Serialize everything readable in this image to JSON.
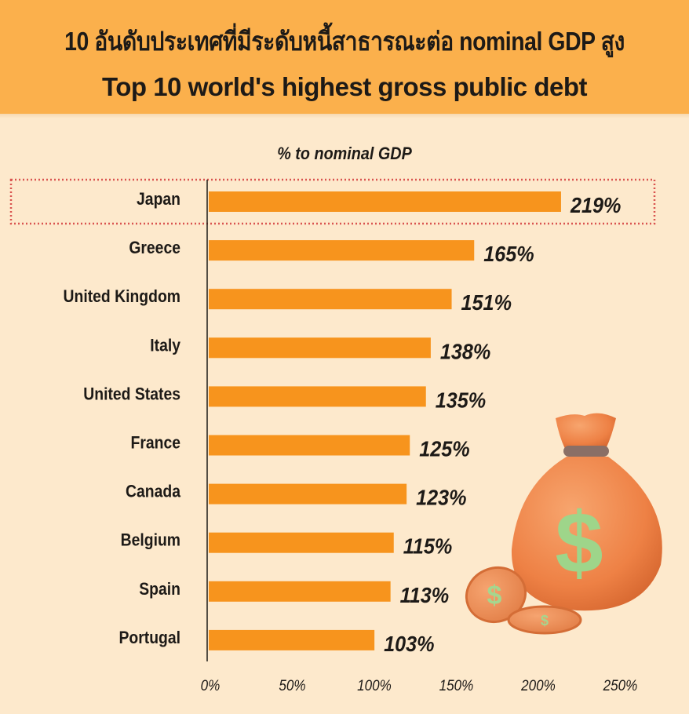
{
  "header": {
    "title_th": "10 อันดับประเทศที่มีระดับหนี้สาธารณะต่อ nominal GDP สูง",
    "title_en": "Top 10 world's highest gross public debt"
  },
  "colors": {
    "header_bg": "#fbb04c",
    "page_bg": "#fde9cc",
    "bar": "#f7941d",
    "highlight_border": "#d9534f",
    "text": "#1d1a17"
  },
  "chart_data": {
    "type": "bar",
    "orientation": "horizontal",
    "title": "Top 10 world's highest gross public debt",
    "xlabel": "% to nominal GDP",
    "ylabel": "",
    "categories": [
      "Japan",
      "Greece",
      "United Kingdom",
      "Italy",
      "United States",
      "France",
      "Canada",
      "Belgium",
      "Spain",
      "Portugal"
    ],
    "values": [
      219,
      165,
      151,
      138,
      135,
      125,
      123,
      115,
      113,
      103
    ],
    "value_labels": [
      "219%",
      "165%",
      "151%",
      "138%",
      "135%",
      "125%",
      "123%",
      "115%",
      "113%",
      "103%"
    ],
    "xlim": [
      0,
      250
    ],
    "xticks": [
      0,
      50,
      100,
      150,
      200,
      250
    ],
    "xtick_labels": [
      "0%",
      "50%",
      "100%",
      "150%",
      "200%",
      "250%"
    ],
    "grid": false,
    "highlighted_category": "Japan",
    "legend": "none"
  },
  "illustration": {
    "icon": "money-bag-icon",
    "symbol": "$"
  }
}
